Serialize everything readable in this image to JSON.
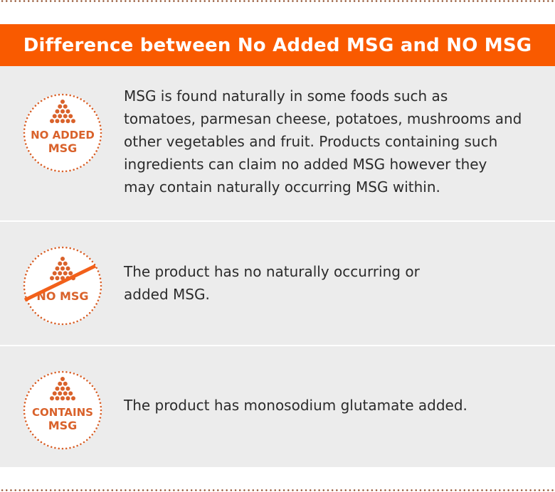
{
  "header": {
    "title": "Difference between No Added MSG and NO MSG"
  },
  "colors": {
    "header": "#f95a00",
    "badge": "#d9622b",
    "row_bg": "#ececec"
  },
  "rows": [
    {
      "badge": {
        "lines": [
          "NO ADDED",
          "MSG"
        ],
        "crossed": false
      },
      "text": "MSG is found naturally in some foods such as tomatoes, parmesan cheese, potatoes, mushrooms and other vegetables and fruit. Products containing such ingredients can claim no added MSG however they may contain naturally occurring MSG within."
    },
    {
      "badge": {
        "lines": [
          "NO MSG"
        ],
        "crossed": true
      },
      "text": "The product has no naturally occurring or added MSG."
    },
    {
      "badge": {
        "lines": [
          "CONTAINS",
          "MSG"
        ],
        "crossed": false
      },
      "text": "The product has monosodium glutamate added."
    }
  ]
}
